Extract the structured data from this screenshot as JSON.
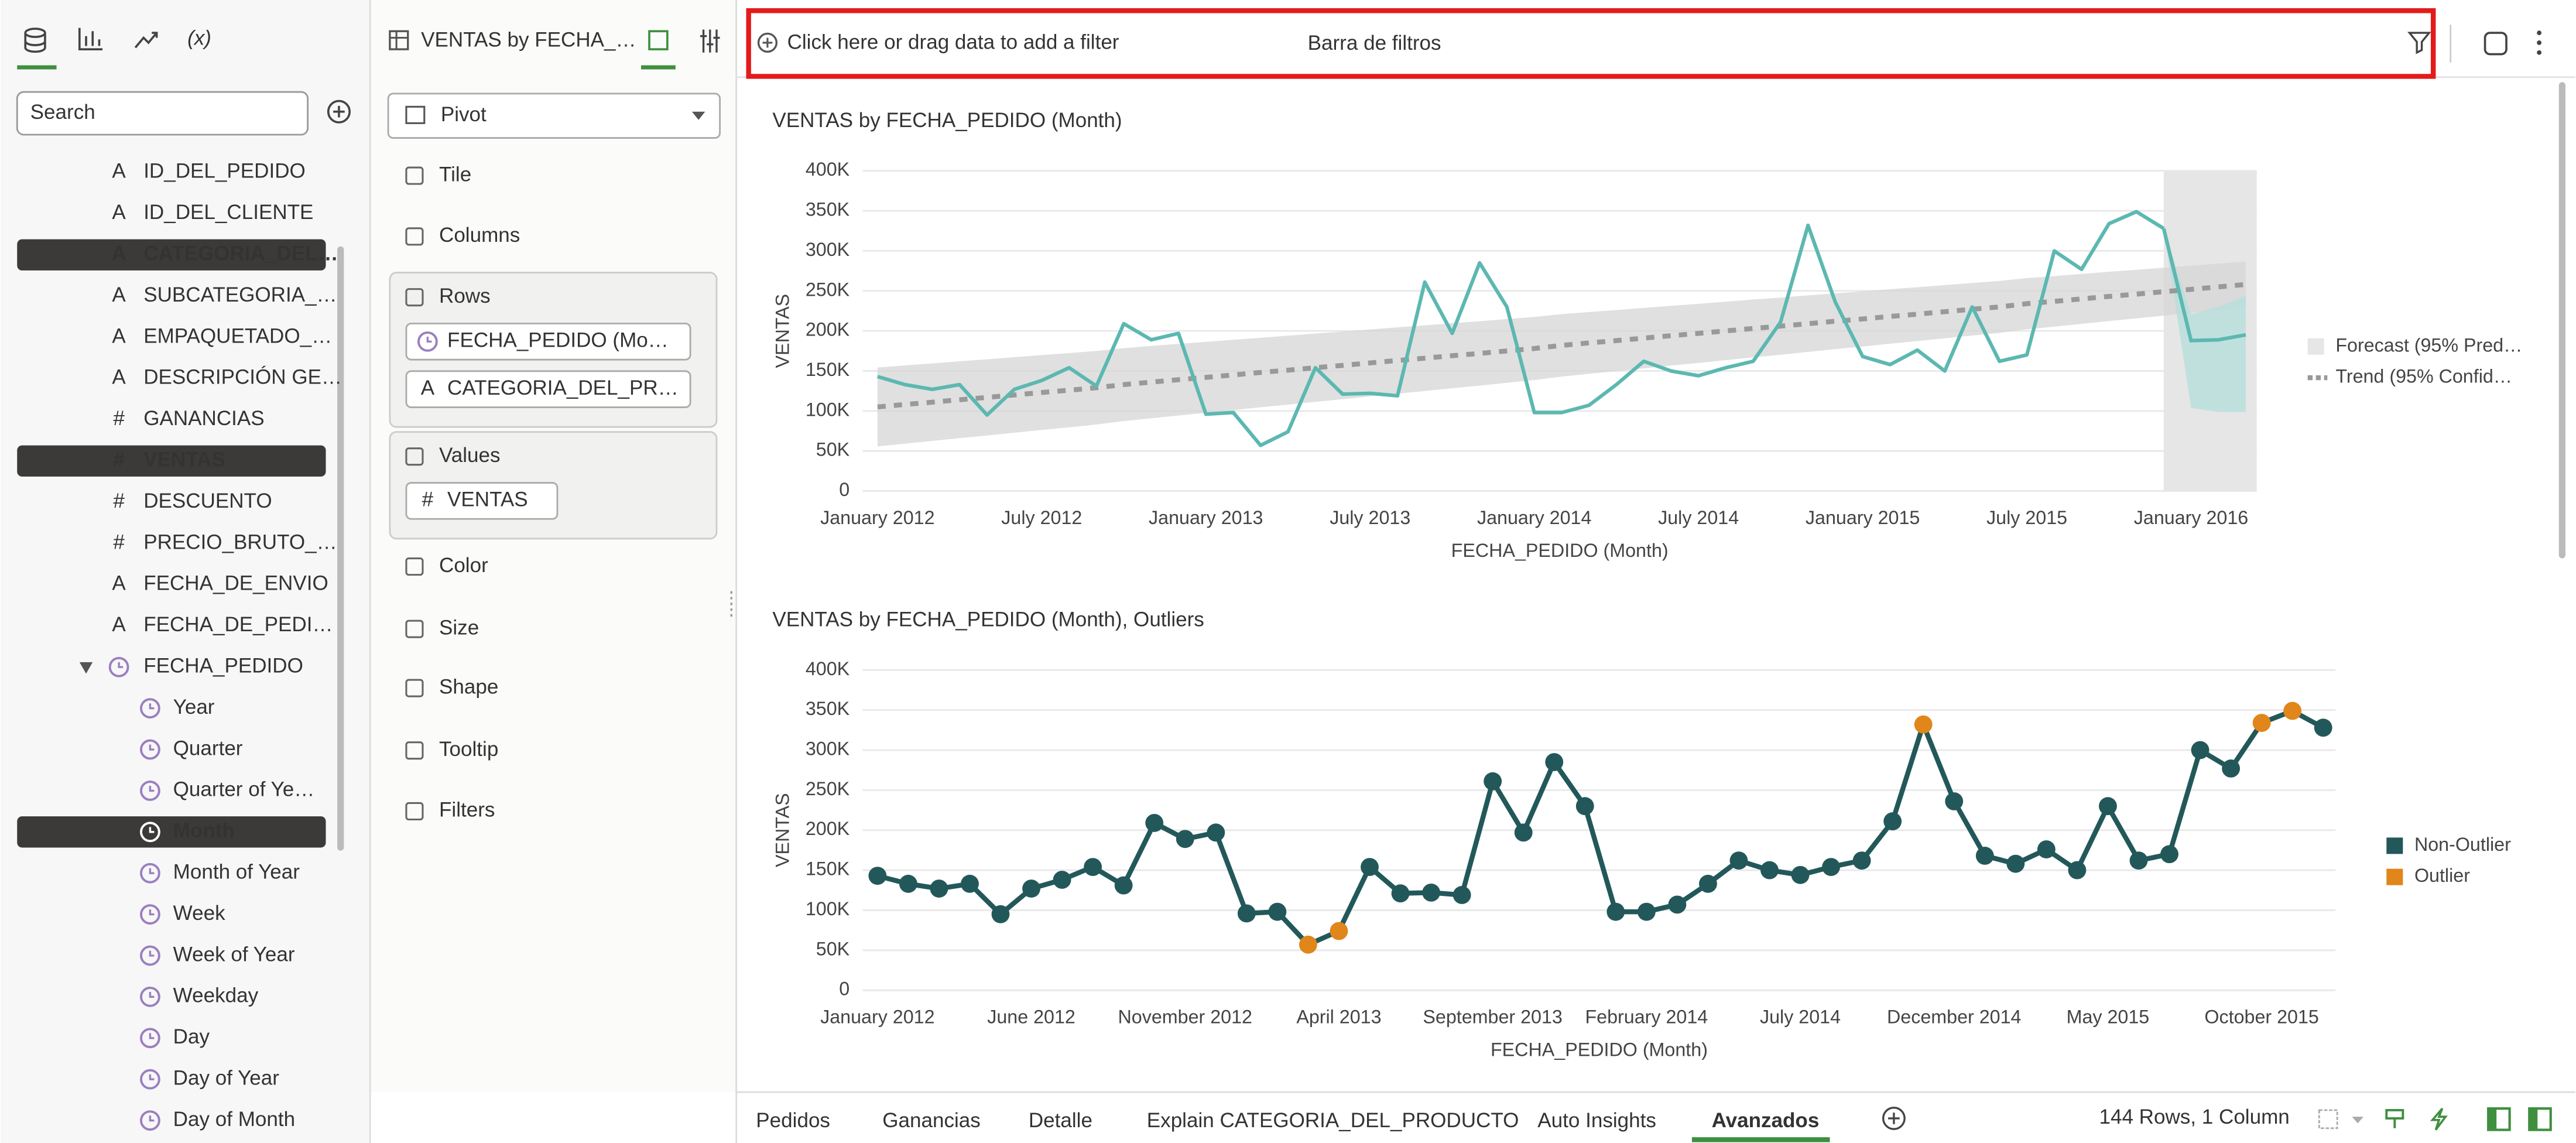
{
  "toolbar": {
    "function_icon": "(x)",
    "search_placeholder": "Search"
  },
  "data_panel": {
    "items": [
      {
        "icon": "A",
        "label": "ID_DEL_PEDIDO"
      },
      {
        "icon": "A",
        "label": "ID_DEL_CLIENTE"
      },
      {
        "icon": "A",
        "label": "CATEGORIA_DEL…",
        "selected": true
      },
      {
        "icon": "A",
        "label": "SUBCATEGORIA_…"
      },
      {
        "icon": "A",
        "label": "EMPAQUETADO_…"
      },
      {
        "icon": "A",
        "label": "DESCRIPCIÓN GE…"
      },
      {
        "icon": "#",
        "label": "GANANCIAS"
      },
      {
        "icon": "#",
        "label": "VENTAS",
        "selected": true
      },
      {
        "icon": "#",
        "label": "DESCUENTO"
      },
      {
        "icon": "#",
        "label": "PRECIO_BRUTO_…"
      },
      {
        "icon": "A",
        "label": "FECHA_DE_ENVIO"
      },
      {
        "icon": "A",
        "label": "FECHA_DE_PEDI…"
      },
      {
        "label": "FECHA_PEDIDO",
        "children": [
          {
            "label": "Year"
          },
          {
            "label": "Quarter"
          },
          {
            "label": "Quarter of Ye…"
          },
          {
            "label": "Month",
            "selected": true
          },
          {
            "label": "Month of Year"
          },
          {
            "label": "Week"
          },
          {
            "label": "Week of Year"
          },
          {
            "label": "Weekday"
          },
          {
            "label": "Day"
          },
          {
            "label": "Day of Year"
          },
          {
            "label": "Day of Month"
          }
        ]
      }
    ]
  },
  "grammar_panel": {
    "title": "VENTAS by FECHA_…",
    "viz_type": "Pivot",
    "sections": [
      {
        "label": "Tile"
      },
      {
        "label": "Columns"
      },
      {
        "label": "Rows",
        "items": [
          {
            "label": "FECHA_PEDIDO (Mo…"
          },
          {
            "icon": "A",
            "label": "CATEGORIA_DEL_PR…"
          }
        ]
      },
      {
        "label": "Values",
        "items": [
          {
            "icon": "#",
            "label": "VENTAS"
          }
        ]
      },
      {
        "label": "Color"
      },
      {
        "label": "Size"
      },
      {
        "label": "Shape"
      },
      {
        "label": "Tooltip"
      },
      {
        "label": "Filters"
      }
    ]
  },
  "filter_bar": {
    "placeholder": "Click here or drag data to add a filter",
    "annotation": "Barra de filtros"
  },
  "chart_data": [
    {
      "type": "line",
      "title": "VENTAS by FECHA_PEDIDO (Month)",
      "x_label": "FECHA_PEDIDO (Month)",
      "y_label": "VENTAS",
      "color": "#5cb8b1",
      "categories": [
        "January 2012",
        null,
        null,
        null,
        null,
        null,
        "July 2012",
        null,
        null,
        null,
        null,
        null,
        "January 2013",
        null,
        null,
        null,
        null,
        null,
        "July 2013",
        null,
        null,
        null,
        null,
        null,
        "January 2014",
        null,
        null,
        null,
        null,
        null,
        "July 2014",
        null,
        null,
        null,
        null,
        null,
        "January 2015",
        null,
        null,
        null,
        null,
        null,
        "July 2015",
        null,
        null,
        null,
        null,
        null,
        "January 2016",
        null,
        null
      ],
      "values": [
        143000,
        133000,
        127000,
        133000,
        95000,
        127000,
        138000,
        154000,
        131000,
        209000,
        189000,
        197000,
        96000,
        98000,
        57000,
        74000,
        154000,
        121000,
        122000,
        119000,
        261000,
        197000,
        285000,
        230000,
        98000,
        98000,
        107000,
        133000,
        162000,
        150000,
        144000,
        154000,
        162000,
        211000,
        332000,
        236000,
        168000,
        158000,
        176000,
        150000,
        230000,
        162000,
        170000,
        300000,
        277000,
        334000,
        349000,
        328000,
        null,
        null,
        null
      ],
      "series": [
        {
          "name": "Forecast (95% Pred…",
          "color": "#5cb8b1",
          "values": [
            null,
            null,
            null,
            null,
            null,
            null,
            null,
            null,
            null,
            null,
            null,
            null,
            null,
            null,
            null,
            null,
            null,
            null,
            null,
            null,
            null,
            null,
            null,
            null,
            null,
            null,
            null,
            null,
            null,
            null,
            null,
            null,
            null,
            null,
            null,
            null,
            null,
            null,
            null,
            null,
            null,
            null,
            null,
            null,
            null,
            null,
            null,
            328000,
            188000,
            189000,
            195000
          ]
        },
        {
          "name": "Trend (95% Confid…",
          "color": "#999999",
          "values": [
            105000,
            108000,
            111000,
            114000,
            117000,
            120000,
            123000,
            126000,
            129000,
            133000,
            136000,
            139000,
            142000,
            145000,
            148000,
            151000,
            154000,
            157000,
            160000,
            163000,
            166000,
            169000,
            172000,
            175000,
            178000,
            182000,
            185000,
            188000,
            191000,
            194000,
            197000,
            200000,
            203000,
            206000,
            209000,
            212000,
            215000,
            218000,
            221000,
            224000,
            227000,
            230000,
            234000,
            237000,
            240000,
            243000,
            246000,
            249000,
            252000,
            255000,
            258000
          ]
        }
      ],
      "ylim": [
        0,
        400000
      ],
      "yticks": [
        0,
        {
          "value": 50000,
          "label": "50K"
        },
        {
          "value": 100000,
          "label": "100K"
        },
        {
          "value": 150000,
          "label": "150K"
        },
        {
          "value": 200000,
          "label": "200K"
        },
        {
          "value": 250000,
          "label": "250K"
        },
        {
          "value": 300000,
          "label": "300K"
        },
        {
          "value": 350000,
          "label": "350K"
        },
        {
          "value": 400000,
          "label": "400K"
        }
      ],
      "grid": true
    },
    {
      "type": "line",
      "title": "VENTAS by FECHA_PEDIDO (Month), Outliers",
      "x_label": "FECHA_PEDIDO (Month)",
      "y_label": "VENTAS",
      "color": "#23585a",
      "categories": [
        "January 2012",
        null,
        null,
        null,
        null,
        "June 2012",
        null,
        null,
        null,
        null,
        "November 2012",
        null,
        null,
        null,
        null,
        "April 2013",
        null,
        null,
        null,
        null,
        "September 2013",
        null,
        null,
        null,
        null,
        "February 2014",
        null,
        null,
        null,
        null,
        "July 2014",
        null,
        null,
        null,
        null,
        "December 2014",
        null,
        null,
        null,
        null,
        "May 2015",
        null,
        null,
        null,
        null,
        "October 2015",
        null,
        null
      ],
      "values": [
        143000,
        133000,
        127000,
        133000,
        95000,
        127000,
        138000,
        154000,
        131000,
        209000,
        189000,
        197000,
        96000,
        98000,
        57000,
        74000,
        154000,
        121000,
        122000,
        119000,
        261000,
        197000,
        285000,
        230000,
        98000,
        98000,
        107000,
        133000,
        162000,
        150000,
        144000,
        154000,
        162000,
        211000,
        332000,
        236000,
        168000,
        158000,
        176000,
        150000,
        230000,
        162000,
        170000,
        300000,
        277000,
        334000,
        349000,
        328000
      ],
      "series": [
        {
          "name": "Non-Outlier",
          "color": "#23585a"
        },
        {
          "name": "Outlier",
          "color": "#e0861b",
          "indices": [
            14,
            15,
            34,
            45,
            46
          ]
        }
      ],
      "ylim": [
        0,
        400000
      ],
      "yticks": [
        0,
        {
          "value": 50000,
          "label": "50K"
        },
        {
          "value": 100000,
          "label": "100K"
        },
        {
          "value": 150000,
          "label": "150K"
        },
        {
          "value": 200000,
          "label": "200K"
        },
        {
          "value": 250000,
          "label": "250K"
        },
        {
          "value": 300000,
          "label": "300K"
        },
        {
          "value": 350000,
          "label": "350K"
        },
        {
          "value": 400000,
          "label": "400K"
        }
      ],
      "grid": true
    }
  ],
  "tabs": [
    "Pedidos",
    "Ganancias",
    "Detalle",
    "Explain CATEGORIA_DEL_PRODUCTO",
    "Auto Insights",
    "Avanzados"
  ],
  "active_tab": 5,
  "status": "144 Rows, 1 Column"
}
